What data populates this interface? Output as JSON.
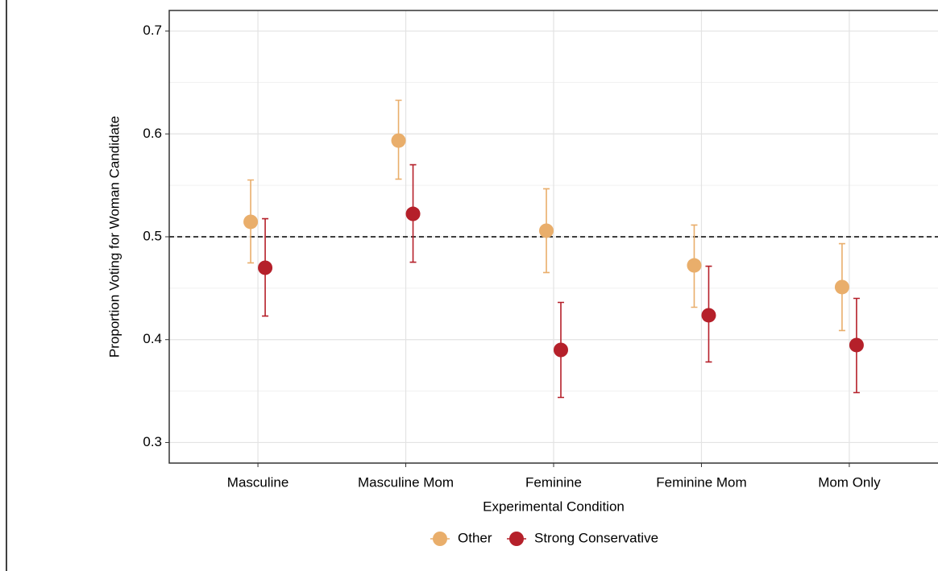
{
  "chart_data": {
    "type": "pointrange",
    "x_label": "Experimental Condition",
    "y_label": "Proportion Voting for Woman Candidate",
    "categories": [
      "Masculine",
      "Masculine Mom",
      "Feminine",
      "Feminine Mom",
      "Mom Only"
    ],
    "series": [
      {
        "name": "Other",
        "color": "#e9ae6b",
        "values": [
          0.5145,
          0.5935,
          0.5059,
          0.4722,
          0.4511
        ],
        "lower": [
          0.4746,
          0.556,
          0.4652,
          0.4315,
          0.4088
        ],
        "upper": [
          0.5552,
          0.6327,
          0.5466,
          0.5114,
          0.4933
        ]
      },
      {
        "name": "Strong Conservative",
        "color": "#b5202a",
        "values": [
          0.4699,
          0.5223,
          0.39,
          0.4237,
          0.3947
        ],
        "lower": [
          0.4229,
          0.4753,
          0.3438,
          0.3783,
          0.3485
        ],
        "upper": [
          0.5176,
          0.57,
          0.4362,
          0.4714,
          0.4401
        ]
      }
    ],
    "ylim": [
      0.28,
      0.72
    ],
    "yticks": [
      0.3,
      0.4,
      0.5,
      0.6,
      0.7
    ],
    "minor_yticks": [
      0.35,
      0.45,
      0.55,
      0.65
    ],
    "hline": 0.5,
    "grid": true,
    "legend_position": "bottom"
  }
}
